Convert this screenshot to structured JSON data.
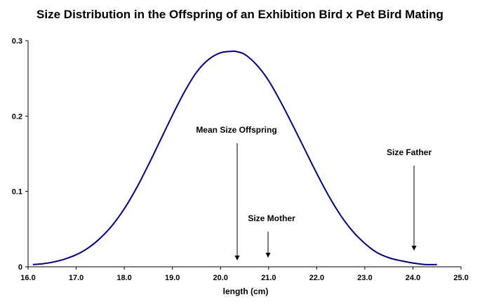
{
  "chart_data": {
    "type": "line",
    "title": "Size Distribution in the Offspring of an Exhibition Bird x Pet Bird Mating",
    "xlabel": "length (cm)",
    "ylabel": "",
    "xlim": [
      16.0,
      25.0
    ],
    "ylim": [
      0,
      0.3
    ],
    "x_ticks": [
      "16.0",
      "17.0",
      "18.0",
      "19.0",
      "20.0",
      "21.0",
      "22.0",
      "23.0",
      "24.0",
      "25.0"
    ],
    "y_ticks": [
      "0",
      "0.1",
      "0.2",
      "0.3"
    ],
    "grid": false,
    "legend": "none",
    "line_color": "#000080",
    "series": [
      {
        "x": [
          16.1,
          16.3,
          16.5,
          16.75,
          17.0,
          17.25,
          17.5,
          17.75,
          18.0,
          18.25,
          18.5,
          18.75,
          19.0,
          19.25,
          19.5,
          19.75,
          20.0,
          20.25,
          20.3,
          20.5,
          20.75,
          21.0,
          21.25,
          21.5,
          21.75,
          22.0,
          22.25,
          22.5,
          22.75,
          23.0,
          23.25,
          23.5,
          23.75,
          24.0,
          24.25,
          24.5
        ],
        "y": [
          0.003,
          0.004,
          0.006,
          0.01,
          0.016,
          0.025,
          0.038,
          0.055,
          0.077,
          0.104,
          0.135,
          0.168,
          0.201,
          0.232,
          0.258,
          0.275,
          0.284,
          0.286,
          0.286,
          0.282,
          0.268,
          0.247,
          0.219,
          0.188,
          0.156,
          0.124,
          0.094,
          0.068,
          0.047,
          0.031,
          0.019,
          0.012,
          0.008,
          0.005,
          0.003,
          0.003
        ]
      }
    ],
    "annotations": [
      {
        "label": "Mean Size Offspring",
        "x": 20.3
      },
      {
        "label": "Size Mother",
        "x": 21.0
      },
      {
        "label": "Size Father",
        "x": 24.0
      }
    ]
  }
}
